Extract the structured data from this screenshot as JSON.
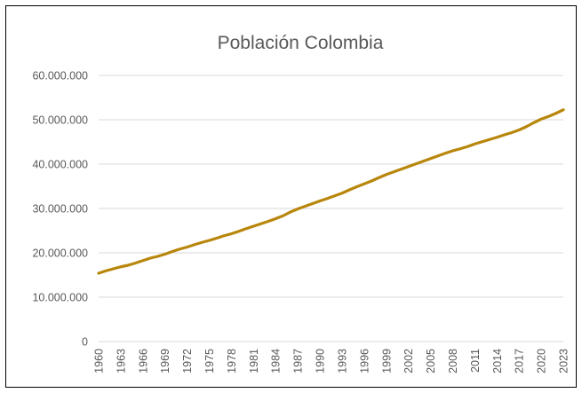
{
  "chart_data": {
    "type": "line",
    "title": "Población Colombia",
    "xlabel": "",
    "ylabel": "",
    "ylim": [
      0,
      60000000
    ],
    "yticks": [
      0,
      10000000,
      20000000,
      30000000,
      40000000,
      50000000,
      60000000
    ],
    "ytick_labels": [
      "0",
      "10.000.000",
      "20.000.000",
      "30.000.000",
      "40.000.000",
      "50.000.000",
      "60.000.000"
    ],
    "xtick_labels": [
      "1960",
      "1963",
      "1966",
      "1969",
      "1972",
      "1975",
      "1978",
      "1981",
      "1984",
      "1987",
      "1990",
      "1993",
      "1996",
      "1999",
      "2002",
      "2005",
      "2008",
      "2011",
      "2014",
      "2017",
      "2020",
      "2023"
    ],
    "grid": true,
    "legend": "none",
    "line_color": "#b8860b",
    "x": [
      1960,
      1961,
      1962,
      1963,
      1964,
      1965,
      1966,
      1967,
      1968,
      1969,
      1970,
      1971,
      1972,
      1973,
      1974,
      1975,
      1976,
      1977,
      1978,
      1979,
      1980,
      1981,
      1982,
      1983,
      1984,
      1985,
      1986,
      1987,
      1988,
      1989,
      1990,
      1991,
      1992,
      1993,
      1994,
      1995,
      1996,
      1997,
      1998,
      1999,
      2000,
      2001,
      2002,
      2003,
      2004,
      2005,
      2006,
      2007,
      2008,
      2009,
      2010,
      2011,
      2012,
      2013,
      2014,
      2015,
      2016,
      2017,
      2018,
      2019,
      2020,
      2021,
      2022,
      2023
    ],
    "values": [
      15400000,
      15950000,
      16400000,
      16850000,
      17200000,
      17700000,
      18250000,
      18800000,
      19200000,
      19700000,
      20300000,
      20850000,
      21300000,
      21850000,
      22350000,
      22800000,
      23300000,
      23850000,
      24300000,
      24850000,
      25450000,
      26000000,
      26550000,
      27100000,
      27700000,
      28350000,
      29200000,
      29900000,
      30500000,
      31100000,
      31700000,
      32250000,
      32850000,
      33450000,
      34200000,
      34900000,
      35550000,
      36200000,
      36950000,
      37650000,
      38250000,
      38850000,
      39450000,
      40050000,
      40650000,
      41250000,
      41850000,
      42450000,
      43000000,
      43450000,
      43950000,
      44550000,
      45050000,
      45550000,
      46050000,
      46600000,
      47100000,
      47700000,
      48450000,
      49350000,
      50150000,
      50750000,
      51450000,
      52250000
    ]
  }
}
